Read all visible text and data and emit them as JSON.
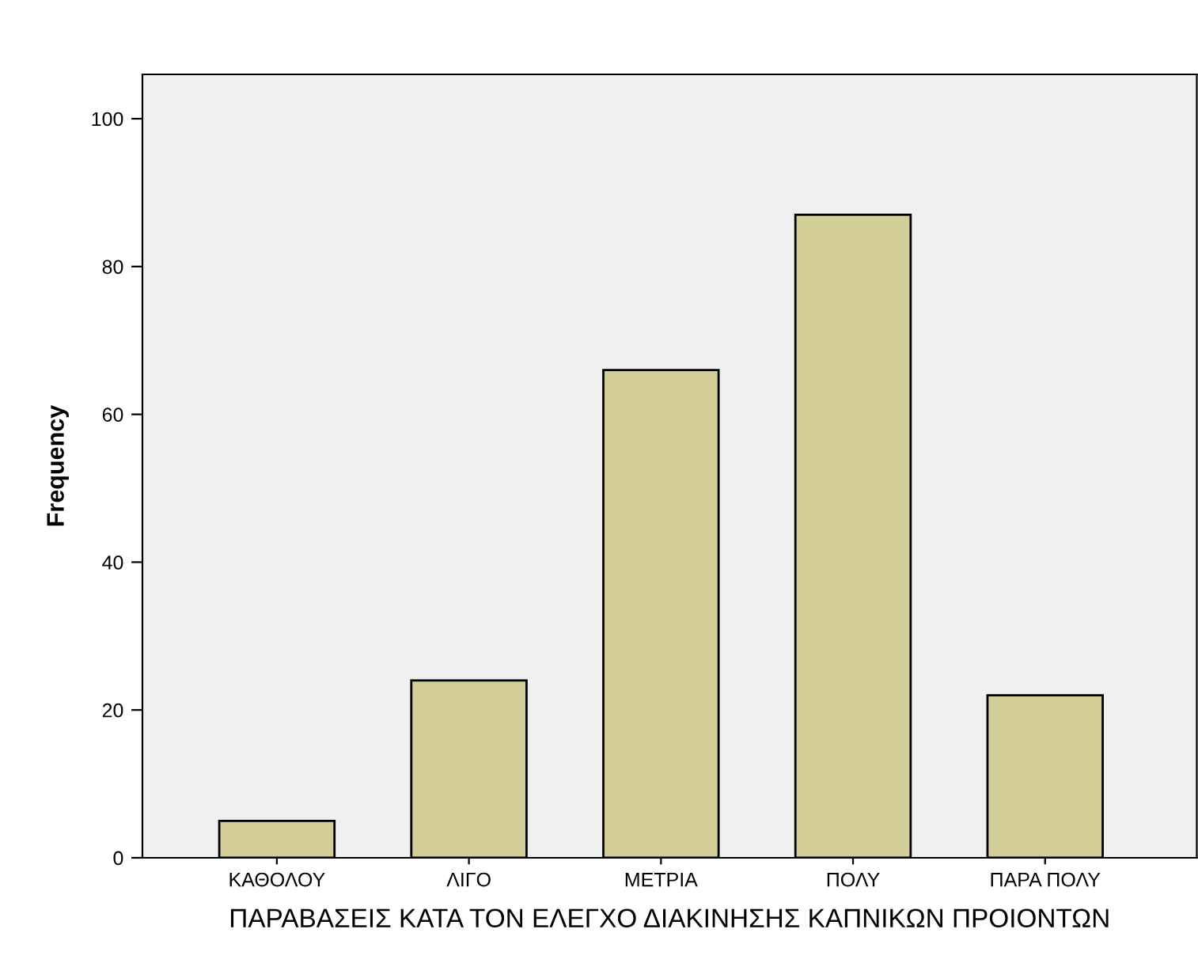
{
  "chart_data": {
    "type": "bar",
    "xlabel": "ΠΑΡΑΒΑΣΕΙΣ ΚΑΤΑ ΤΟΝ ΕΛΕΓΧΟ ΔΙΑΚΙΝΗΣΗΣ ΚΑΠΝΙΚΩΝ ΠΡΟΙΟΝΤΩΝ",
    "ylabel": "Frequency",
    "categories": [
      "ΚΑΘΟΛΟΥ",
      "ΛΙΓΟ",
      "ΜΕΤΡΙΑ",
      "ΠΟΛΥ",
      "ΠΑΡΑ ΠΟΛΥ"
    ],
    "values": [
      5,
      24,
      66,
      87,
      22
    ],
    "color": "#d3ce97",
    "ylim": [
      0,
      106
    ],
    "yticks": [
      0,
      20,
      40,
      60,
      80,
      100
    ],
    "grid": false,
    "legend": false
  }
}
